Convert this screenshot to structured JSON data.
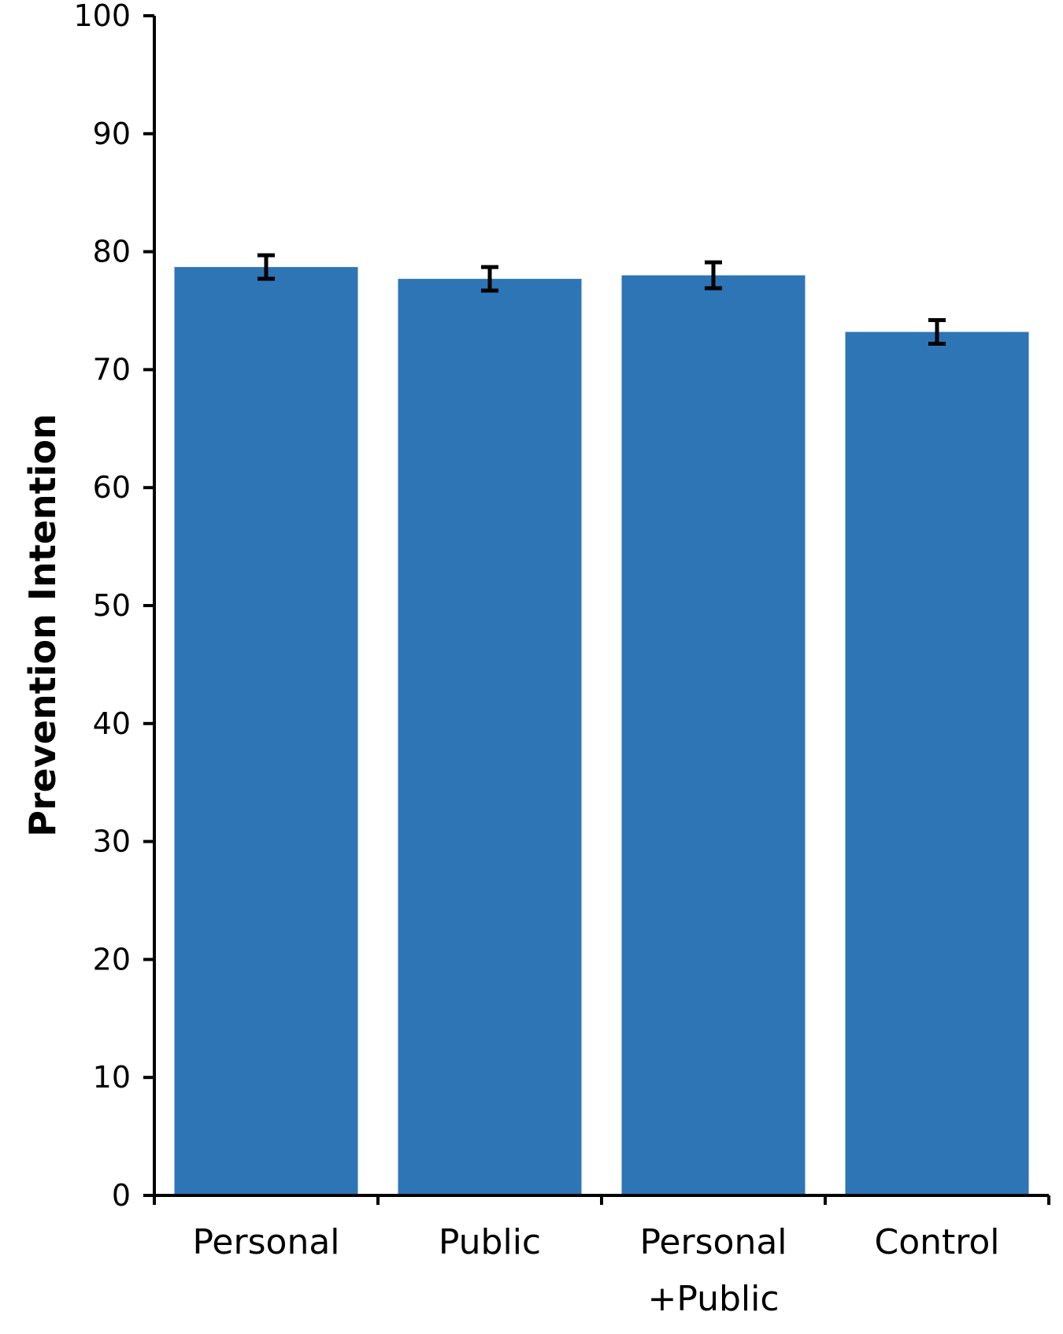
{
  "chart_data": {
    "type": "bar",
    "title": "",
    "xlabel": "",
    "ylabel": "Prevention Intention",
    "ylim": [
      0,
      100
    ],
    "yticks": [
      0,
      10,
      20,
      30,
      40,
      50,
      60,
      70,
      80,
      90,
      100
    ],
    "categories": [
      [
        "Personal"
      ],
      [
        "Public"
      ],
      [
        "Personal",
        "+Public"
      ],
      [
        "Control"
      ]
    ],
    "values": [
      78.7,
      77.7,
      78.0,
      73.2
    ],
    "error": [
      1.0,
      1.0,
      1.1,
      1.0
    ],
    "bar_color": "#2E75B6",
    "grid": false,
    "legend": "none"
  }
}
